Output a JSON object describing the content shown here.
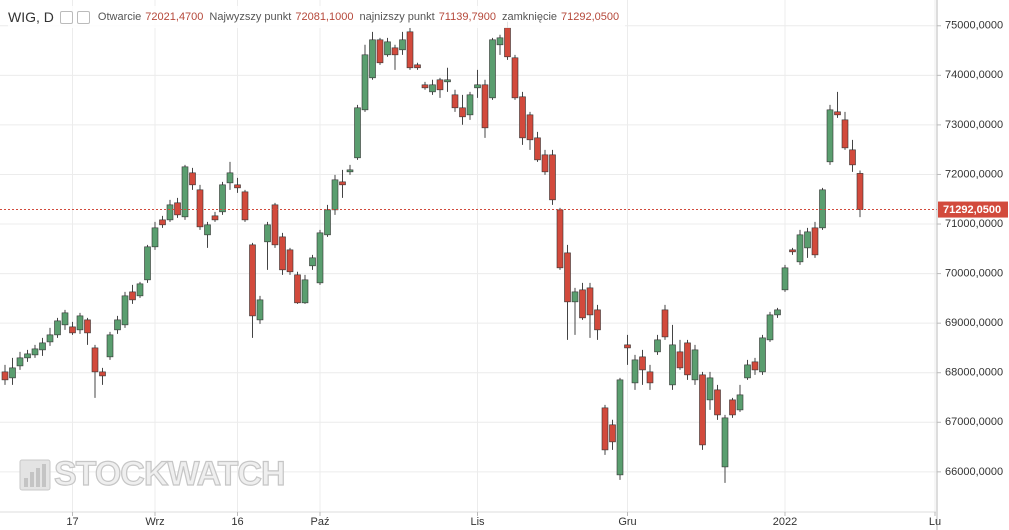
{
  "chart_data": {
    "type": "candlestick",
    "symbol": "WIG, D",
    "fields": [
      {
        "label": "Otwarcie",
        "value": "72021,4700"
      },
      {
        "label": "Najwyzszy punkt",
        "value": "72081,1000"
      },
      {
        "label": "najnizszy punkt",
        "value": "71139,7900"
      },
      {
        "label": "zamknięcie",
        "value": "71292,0500"
      }
    ],
    "watermark": "STOCKWATCH",
    "up_color": "#5a9e6f",
    "down_color": "#d24a3c",
    "grid": true,
    "ylim": [
      65190,
      75520
    ],
    "yticks": [
      {
        "value": 66000,
        "label": "66000,0000"
      },
      {
        "value": 67000,
        "label": "67000,0000"
      },
      {
        "value": 68000,
        "label": "68000,0000"
      },
      {
        "value": 69000,
        "label": "69000,0000"
      },
      {
        "value": 70000,
        "label": "70000,0000"
      },
      {
        "value": 71000,
        "label": "71000,0000"
      },
      {
        "value": 72000,
        "label": "72000,0000"
      },
      {
        "value": 73000,
        "label": "73000,0000"
      },
      {
        "value": 74000,
        "label": "74000,0000"
      },
      {
        "value": 75000,
        "label": "75000,0000"
      }
    ],
    "price_line": {
      "value": 71292.05,
      "label": "71292,0500",
      "color": "#d24a3c"
    },
    "categories": [
      null,
      null,
      null,
      null,
      null,
      null,
      null,
      null,
      null,
      "17",
      null,
      null,
      null,
      null,
      null,
      null,
      null,
      null,
      null,
      null,
      "Wrz",
      null,
      null,
      null,
      null,
      null,
      null,
      null,
      null,
      null,
      null,
      "16",
      null,
      null,
      null,
      null,
      null,
      null,
      null,
      null,
      null,
      null,
      "Paź",
      null,
      null,
      null,
      null,
      null,
      null,
      null,
      null,
      null,
      null,
      null,
      null,
      null,
      null,
      null,
      null,
      null,
      null,
      null,
      null,
      "Lis",
      null,
      null,
      null,
      null,
      null,
      null,
      null,
      null,
      null,
      null,
      null,
      null,
      null,
      null,
      null,
      null,
      null,
      null,
      null,
      "Gru",
      null,
      null,
      null,
      null,
      null,
      null,
      null,
      null,
      null,
      null,
      null,
      null,
      null,
      null,
      null,
      null,
      null,
      null,
      null,
      null,
      "2022",
      null,
      null,
      null,
      null,
      null,
      null,
      null,
      null,
      null,
      null,
      null,
      null,
      null,
      null,
      null,
      null,
      null,
      null,
      null,
      "Lu"
    ],
    "open": [
      68017,
      67896,
      68138,
      68300,
      68360,
      68461,
      68622,
      68764,
      68966,
      68925,
      68865,
      69066,
      68501,
      68017,
      68320,
      68865,
      68966,
      69631,
      69551,
      69874,
      70540,
      71084,
      71084,
      71428,
      71145,
      72033,
      71690,
      70782,
      71165,
      71246,
      71831,
      71791,
      71649,
      70580,
      69066,
      70641,
      71387,
      70741,
      70479,
      69975,
      69410,
      70157,
      69813,
      70782,
      71286,
      71851,
      72053,
      72336,
      73304,
      73950,
      74717,
      74414,
      74555,
      74515,
      74878,
      74212,
      73809,
      73667,
      73910,
      73869,
      73607,
      73345,
      73203,
      73748,
      73809,
      73546,
      74616,
      74959,
      74354,
      73567,
      73203,
      72739,
      72396,
      72396,
      71286,
      70418,
      69430,
      69672,
      69712,
      69268,
      67291,
      66949,
      65939,
      68562,
      67795,
      68320,
      68017,
      68421,
      69268,
      67755,
      68421,
      68602,
      67856,
      67957,
      67452,
      67654,
      66100,
      67452,
      67250,
      67896,
      68219,
      68017,
      68663,
      69167,
      69672,
      70479,
      70237,
      70519,
      70923,
      70923,
      72255,
      73264,
      73102,
      72497,
      72021.47,
      null,
      null,
      null,
      null,
      null,
      null,
      null,
      null,
      null,
      null
    ],
    "high": [
      68158,
      68300,
      68421,
      68461,
      68562,
      68703,
      68905,
      69107,
      69268,
      69026,
      69208,
      69107,
      68562,
      68098,
      68824,
      69147,
      69631,
      69773,
      69833,
      70580,
      71044,
      71165,
      71488,
      71528,
      72194,
      72134,
      71791,
      71044,
      71246,
      71851,
      72255,
      71932,
      71690,
      70620,
      69551,
      71044,
      71428,
      70822,
      70519,
      70036,
      69975,
      70378,
      70883,
      71387,
      71992,
      72093,
      72194,
      73405,
      74616,
      74878,
      74757,
      74757,
      74616,
      74878,
      74959,
      74253,
      73869,
      73910,
      73950,
      74152,
      73708,
      73607,
      73667,
      74111,
      73910,
      74757,
      74818,
      75080,
      74414,
      73667,
      73264,
      72860,
      72497,
      72497,
      71327,
      70580,
      69712,
      69813,
      69813,
      69369,
      67351,
      67050,
      67896,
      68764,
      68360,
      68461,
      68158,
      68764,
      69369,
      68966,
      68663,
      68663,
      68562,
      68017,
      68017,
      67755,
      67149,
      67492,
      67755,
      68259,
      68300,
      68764,
      69228,
      69308,
      70176,
      70519,
      70883,
      70923,
      71044,
      71730,
      73405,
      73667,
      73264,
      72699,
      72081.1,
      null,
      null,
      null,
      null,
      null,
      null,
      null,
      null,
      null,
      null
    ],
    "low": [
      67755,
      67755,
      68057,
      68219,
      68300,
      68340,
      68542,
      68703,
      68865,
      68764,
      68784,
      68562,
      67492,
      67755,
      68259,
      68784,
      68905,
      69389,
      69510,
      69813,
      70479,
      70923,
      71044,
      71125,
      71084,
      71690,
      70883,
      70519,
      71044,
      71185,
      71690,
      71629,
      71044,
      68703,
      68986,
      70076,
      70519,
      69975,
      69975,
      69389,
      69389,
      70076,
      69773,
      70741,
      71185,
      71528,
      71992,
      72295,
      73264,
      73910,
      74212,
      74374,
      74111,
      74414,
      74111,
      74111,
      73708,
      73607,
      73546,
      73667,
      73264,
      73002,
      73102,
      73546,
      72739,
      73506,
      74414,
      74313,
      73506,
      72598,
      72497,
      72255,
      71992,
      71387,
      70076,
      68663,
      68764,
      69066,
      68703,
      68663,
      66343,
      66443,
      65838,
      68158,
      67654,
      67755,
      67654,
      68360,
      68663,
      67654,
      68057,
      67856,
      67755,
      66443,
      67250,
      67048,
      65777,
      67089,
      67210,
      67856,
      67957,
      67957,
      68622,
      69107,
      69631,
      70378,
      70176,
      70318,
      70318,
      70883,
      72194,
      73143,
      72497,
      72053,
      71139.79,
      null,
      null,
      null,
      null,
      null,
      null,
      null,
      null,
      null,
      null
    ],
    "close": [
      67856,
      68098,
      68300,
      68380,
      68481,
      68602,
      68764,
      69046,
      69208,
      68804,
      69147,
      68804,
      68017,
      67936,
      68764,
      69066,
      69551,
      69470,
      69793,
      70540,
      70923,
      70984,
      71387,
      71185,
      72154,
      71791,
      70943,
      70984,
      71084,
      71791,
      72033,
      71730,
      71084,
      69147,
      69470,
      70984,
      70580,
      70076,
      70036,
      69410,
      69874,
      70318,
      70822,
      71286,
      71892,
      71791,
      72093,
      73345,
      74414,
      74717,
      74253,
      74676,
      74414,
      74717,
      74152,
      74152,
      73748,
      73809,
      73708,
      73910,
      73345,
      73163,
      73607,
      73809,
      72941,
      74717,
      74757,
      74374,
      73546,
      72739,
      72699,
      72295,
      72053,
      71488,
      70116,
      69430,
      69631,
      69107,
      69167,
      68865,
      66443,
      66605,
      67856,
      68501,
      68259,
      68057,
      67795,
      68663,
      68723,
      68562,
      68098,
      67957,
      68461,
      66544,
      67896,
      67149,
      67089,
      67149,
      67553,
      68158,
      68057,
      68703,
      69167,
      69268,
      70116,
      70439,
      70782,
      70842,
      70378,
      71690,
      73304,
      73203,
      72537,
      72194,
      71292.05,
      null,
      null,
      null,
      null,
      null,
      null,
      null,
      null,
      null,
      null
    ]
  }
}
